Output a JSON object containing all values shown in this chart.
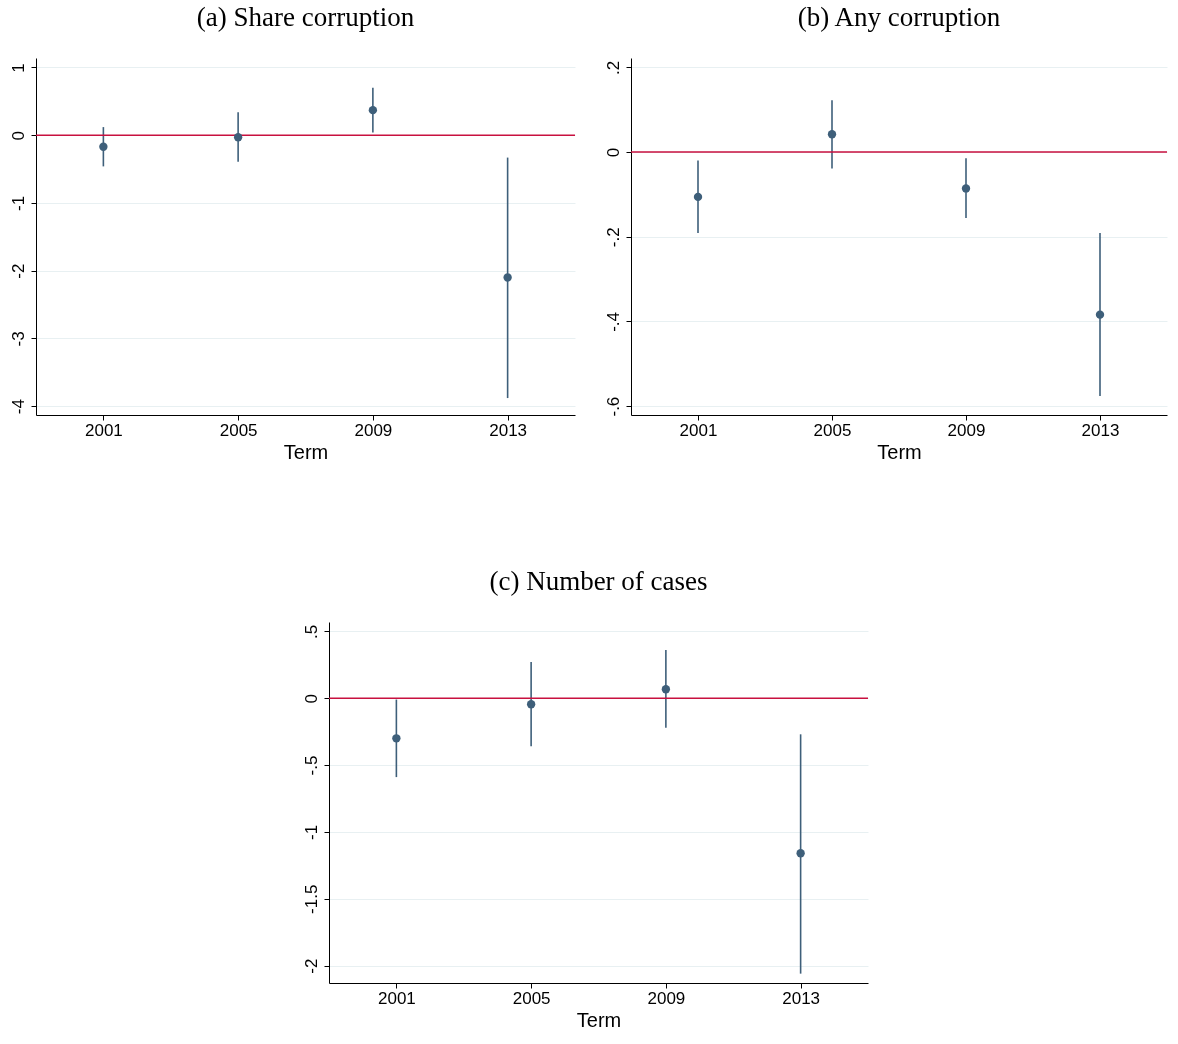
{
  "chart_data": [
    {
      "type": "scatter",
      "title": "(a) Share corruption",
      "xlabel": "Term",
      "x": [
        2001,
        2005,
        2009,
        2013
      ],
      "xlim": [
        1999,
        2015
      ],
      "xticks": [
        2001,
        2005,
        2009,
        2013
      ],
      "ylim": [
        -4.13,
        1.14
      ],
      "yticks": [
        -4,
        -3,
        -2,
        -1,
        0,
        1
      ],
      "grid": "y",
      "marker": "circle",
      "series": [
        {
          "color": "#3e5f7a",
          "values": [
            -0.17,
            -0.03,
            0.37,
            -2.1
          ],
          "errors": [
            [
              -0.46,
              0.12
            ],
            [
              -0.39,
              0.34
            ],
            [
              0.04,
              0.7
            ],
            [
              -3.88,
              -0.33
            ]
          ]
        }
      ],
      "ref_lines": [
        {
          "axis": "y",
          "value": 0,
          "color": "#c8103f"
        }
      ]
    },
    {
      "type": "scatter",
      "title": "(b) Any corruption",
      "xlabel": "Term",
      "x": [
        2001,
        2005,
        2009,
        2013
      ],
      "xlim": [
        1999,
        2015
      ],
      "xticks": [
        2001,
        2005,
        2009,
        2013
      ],
      "ylim": [
        -0.621,
        0.222
      ],
      "yticks": [
        {
          "value": -0.6,
          "label": "-.6"
        },
        {
          "value": -0.4,
          "label": "-.4"
        },
        {
          "value": -0.2,
          "label": "-.2"
        },
        0,
        {
          "value": 0.2,
          "label": ".2"
        }
      ],
      "grid": "y",
      "marker": "circle",
      "series": [
        {
          "color": "#3e5f7a",
          "values": [
            -0.106,
            0.042,
            -0.086,
            -0.384
          ],
          "errors": [
            [
              -0.191,
              -0.02
            ],
            [
              -0.039,
              0.122
            ],
            [
              -0.156,
              -0.015
            ],
            [
              -0.576,
              -0.191
            ]
          ]
        }
      ],
      "ref_lines": [
        {
          "axis": "y",
          "value": 0,
          "color": "#c8103f"
        }
      ]
    },
    {
      "type": "scatter",
      "title": "(c) Number of cases",
      "xlabel": "Term",
      "x": [
        2001,
        2005,
        2009,
        2013
      ],
      "xlim": [
        1999,
        2015
      ],
      "xticks": [
        2001,
        2005,
        2009,
        2013
      ],
      "ylim": [
        -2.13,
        0.57
      ],
      "yticks": [
        -2,
        -1.5,
        -1,
        {
          "value": -0.5,
          "label": "-.5"
        },
        0,
        {
          "value": 0.5,
          "label": ".5"
        }
      ],
      "grid": "y",
      "marker": "circle",
      "series": [
        {
          "color": "#3e5f7a",
          "values": [
            -0.3,
            -0.045,
            0.067,
            -1.16
          ],
          "errors": [
            [
              -0.59,
              -0.01
            ],
            [
              -0.36,
              0.27
            ],
            [
              -0.22,
              0.36
            ],
            [
              -2.06,
              -0.27
            ]
          ]
        }
      ],
      "ref_lines": [
        {
          "axis": "y",
          "value": 0,
          "color": "#c8103f"
        }
      ]
    }
  ]
}
